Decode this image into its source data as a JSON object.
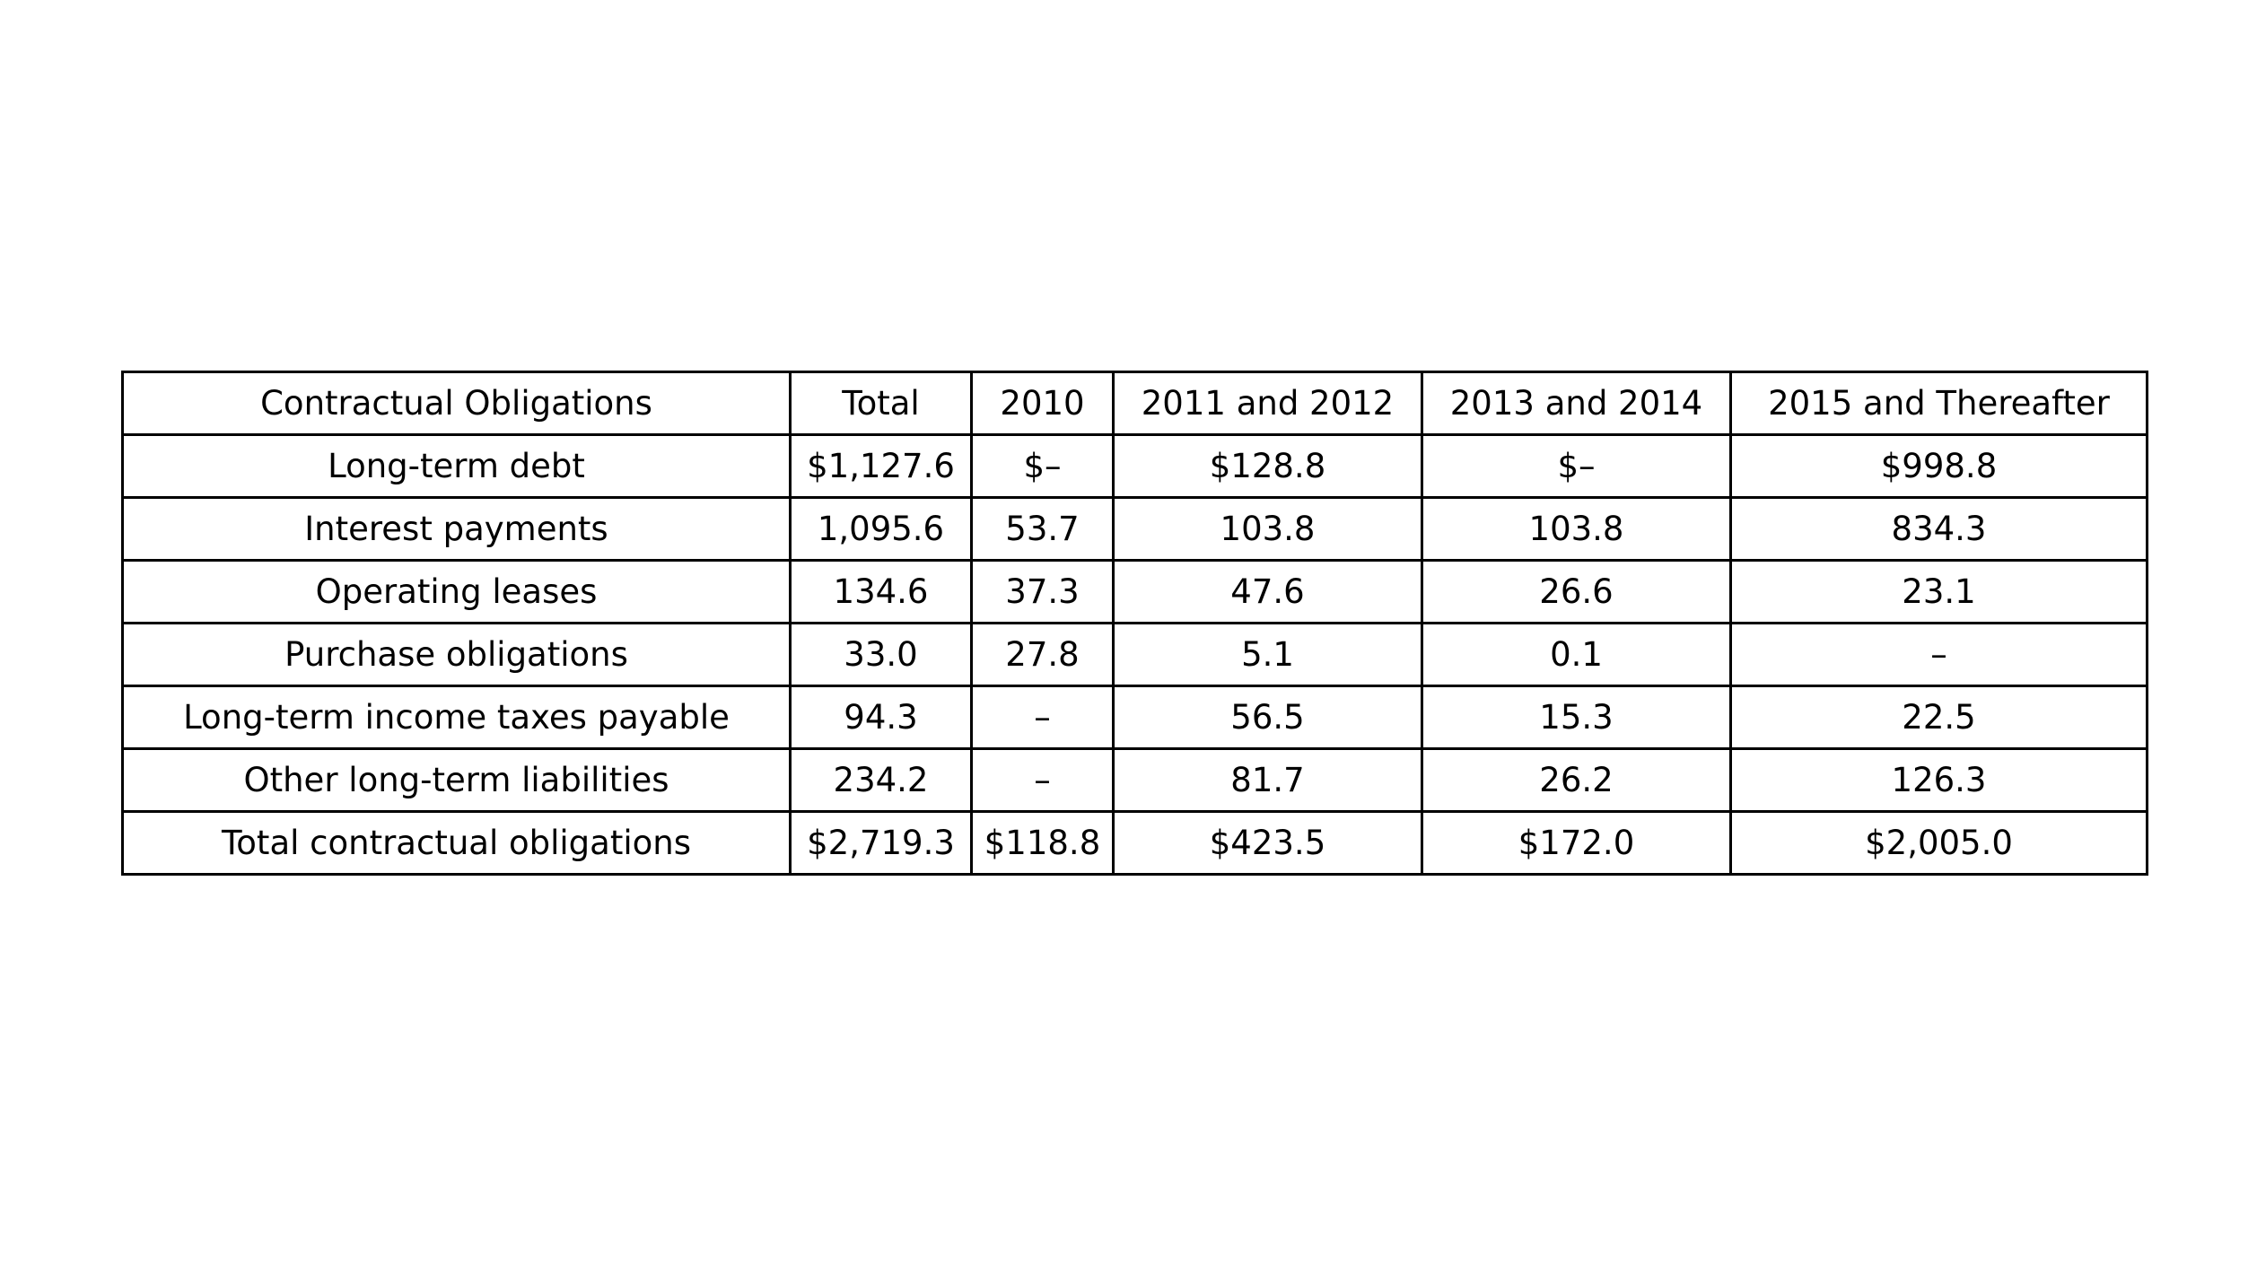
{
  "chart_data": {
    "type": "table",
    "columns": [
      "Contractual Obligations",
      "Total",
      "2010",
      "2011 and 2012",
      "2013 and 2014",
      "2015 and Thereafter"
    ],
    "rows": [
      [
        "Long-term debt",
        "$1,127.6",
        "$–",
        "$128.8",
        "$–",
        "$998.8"
      ],
      [
        "Interest payments",
        "1,095.6",
        "53.7",
        "103.8",
        "103.8",
        "834.3"
      ],
      [
        "Operating leases",
        "134.6",
        "37.3",
        "47.6",
        "26.6",
        "23.1"
      ],
      [
        "Purchase obligations",
        "33.0",
        "27.8",
        "5.1",
        "0.1",
        "–"
      ],
      [
        "Long-term income taxes payable",
        "94.3",
        "–",
        "56.5",
        "15.3",
        "22.5"
      ],
      [
        "Other long-term liabilities",
        "234.2",
        "–",
        "81.7",
        "26.2",
        "126.3"
      ],
      [
        "Total contractual obligations",
        "$2,719.3",
        "$118.8",
        "$423.5",
        "$172.0",
        "$2,005.0"
      ]
    ]
  }
}
